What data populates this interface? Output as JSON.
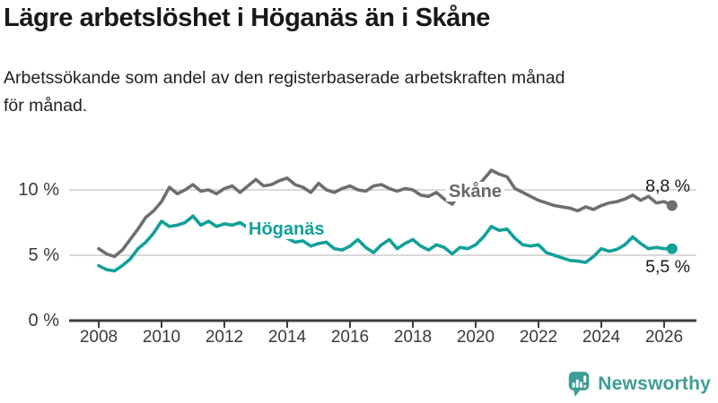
{
  "header": {
    "title": "Lägre arbetslöshet i Höganäs än i Skåne",
    "subtitle": "Arbetssökande som andel av den registerbaserade arbetskraften månad för månad.",
    "subtitle_lines": [
      "Arbetssökande som andel av den registerbaserade arbetskraften månad",
      "för månad."
    ]
  },
  "chart_data": {
    "type": "line",
    "title": "Lägre arbetslöshet i Höganäs än i Skåne",
    "subtitle": "Arbetssökande som andel av den registerbaserade arbetskraften månad för månad.",
    "xlabel": "",
    "ylabel": "",
    "unit": "%",
    "legend": "inline-labels",
    "grid": "horizontal",
    "x_axis": {
      "start": 2008,
      "step": 0.25,
      "range": [
        2008,
        2026.5
      ],
      "ticks": [
        2008,
        2010,
        2012,
        2014,
        2016,
        2018,
        2020,
        2022,
        2024,
        2026
      ]
    },
    "y_axis": {
      "range": [
        0,
        12.5
      ],
      "ticks": [
        {
          "value": 10,
          "label": "10 %"
        },
        {
          "value": 5,
          "label": "5 %"
        },
        {
          "value": 0,
          "label": "0 %"
        }
      ]
    },
    "series": [
      {
        "name": "Skåne",
        "color": "#6e6e72",
        "end_label": "8,8 %",
        "end_value": 8.8,
        "values": [
          5.5,
          5.1,
          4.9,
          5.4,
          6.2,
          7.0,
          7.9,
          8.4,
          9.1,
          10.2,
          9.7,
          10.0,
          10.4,
          9.9,
          10.0,
          9.7,
          10.1,
          10.3,
          9.8,
          10.3,
          10.8,
          10.3,
          10.4,
          10.7,
          10.9,
          10.4,
          10.2,
          9.8,
          10.5,
          10.0,
          9.8,
          10.1,
          10.3,
          10.0,
          9.9,
          10.3,
          10.4,
          10.1,
          9.9,
          10.1,
          10.0,
          9.6,
          9.5,
          9.8,
          9.3,
          8.9,
          9.7,
          9.9,
          10.1,
          10.8,
          11.5,
          11.2,
          11.0,
          10.1,
          9.8,
          9.5,
          9.2,
          9.0,
          8.8,
          8.7,
          8.6,
          8.4,
          8.7,
          8.5,
          8.8,
          9.0,
          9.1,
          9.3,
          9.6,
          9.2,
          9.5,
          9.0,
          9.1,
          8.8
        ]
      },
      {
        "name": "Höganäs",
        "color": "#12a09a",
        "end_label": "5,5 %",
        "end_value": 5.5,
        "values": [
          4.2,
          3.9,
          3.8,
          4.2,
          4.7,
          5.5,
          6.0,
          6.7,
          7.6,
          7.2,
          7.3,
          7.5,
          8.0,
          7.3,
          7.6,
          7.2,
          7.4,
          7.3,
          7.5,
          7.1,
          7.2,
          7.0,
          6.8,
          6.5,
          6.3,
          6.0,
          6.1,
          5.7,
          5.9,
          6.0,
          5.5,
          5.4,
          5.7,
          6.2,
          5.6,
          5.2,
          5.8,
          6.2,
          5.5,
          5.9,
          6.2,
          5.7,
          5.4,
          5.8,
          5.6,
          5.1,
          5.6,
          5.5,
          5.8,
          6.4,
          7.2,
          6.9,
          7.0,
          6.3,
          5.8,
          5.7,
          5.8,
          5.2,
          5.0,
          4.8,
          4.6,
          4.55,
          4.45,
          4.9,
          5.5,
          5.3,
          5.45,
          5.8,
          6.4,
          5.9,
          5.5,
          5.6,
          5.5,
          5.5
        ]
      }
    ]
  },
  "branding": {
    "logo_text": "Newsworthy",
    "logo_color": "#3f9c95"
  },
  "colors": {
    "accent_teal": "#12a09a",
    "line_gray": "#6e6e72",
    "grid": "#d9d9d9",
    "axis": "#3d3d40",
    "text": "#1a1a1a"
  }
}
